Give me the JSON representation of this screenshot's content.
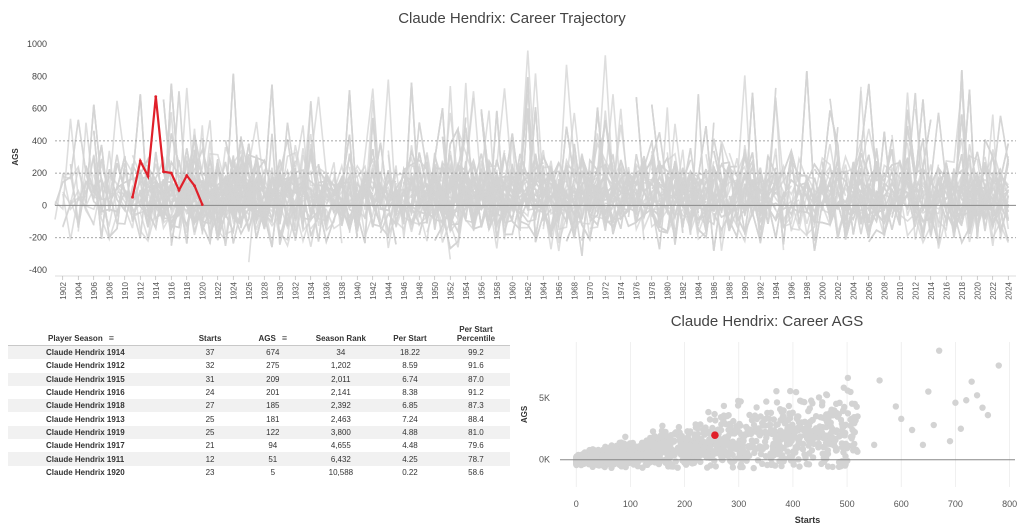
{
  "charts_text": {
    "trajectory_title": "Claude Hendrix: Career Trajectory",
    "ags_title": "Claude Hendrix: Career AGS"
  },
  "chart_data": [
    {
      "type": "line",
      "title": "Claude Hendrix: Career Trajectory",
      "xlabel": "",
      "ylabel": "AGS",
      "ylim": [
        -400,
        1000
      ],
      "y_ticks": [
        -400,
        -200,
        0,
        200,
        400,
        600,
        800,
        1000
      ],
      "x_ticks": [
        "1902",
        "1904",
        "1906",
        "1908",
        "1910",
        "1912",
        "1914",
        "1916",
        "1918",
        "1920",
        "1922",
        "1924",
        "1926",
        "1928",
        "1930",
        "1932",
        "1934",
        "1936",
        "1938",
        "1940",
        "1942",
        "1944",
        "1946",
        "1948",
        "1950",
        "1952",
        "1954",
        "1956",
        "1958",
        "1960",
        "1962",
        "1964",
        "1966",
        "1968",
        "1970",
        "1972",
        "1974",
        "1976",
        "1978",
        "1980",
        "1982",
        "1984",
        "1986",
        "1988",
        "1990",
        "1992",
        "1994",
        "1996",
        "1998",
        "2000",
        "2002",
        "2004",
        "2006",
        "2008",
        "2010",
        "2012",
        "2014",
        "2016",
        "2018",
        "2020",
        "2022",
        "2024"
      ],
      "reference_lines": [
        -200,
        200,
        400
      ],
      "background": "all other player careers (gray)",
      "series": [
        {
          "color": "#e0202a",
          "x": [
            1911,
            1912,
            1913,
            1914,
            1915,
            1916,
            1917,
            1918,
            1919,
            1920
          ],
          "values": [
            51,
            275,
            181,
            674,
            209,
            201,
            94,
            185,
            122,
            5
          ]
        }
      ],
      "colors": {
        "highlight": "#e0202a",
        "background": "#d3d3d3"
      }
    },
    {
      "type": "scatter",
      "title": "Claude Hendrix: Career AGS",
      "xlabel": "Starts",
      "ylabel": "AGS",
      "xlim": [
        -30,
        810
      ],
      "ylim": [
        -2200,
        9500
      ],
      "x_ticks": [
        0,
        100,
        200,
        300,
        400,
        500,
        600,
        700,
        800
      ],
      "y_ticks": [
        "0K",
        "5K"
      ],
      "highlight": {
        "x": 256,
        "y": 1980,
        "color": "#e0202a"
      },
      "background": "all other pitcher careers (gray)"
    }
  ],
  "table": {
    "headers": [
      "Player Season",
      "Starts",
      "AGS",
      "Season Rank",
      "Per Start",
      "Per Start Percentile"
    ],
    "rows": [
      [
        "Claude Hendrix 1914",
        "37",
        "674",
        "34",
        "18.22",
        "99.2"
      ],
      [
        "Claude Hendrix 1912",
        "32",
        "275",
        "1,202",
        "8.59",
        "91.6"
      ],
      [
        "Claude Hendrix 1915",
        "31",
        "209",
        "2,011",
        "6.74",
        "87.0"
      ],
      [
        "Claude Hendrix 1916",
        "24",
        "201",
        "2,141",
        "8.38",
        "91.2"
      ],
      [
        "Claude Hendrix 1918",
        "27",
        "185",
        "2,392",
        "6.85",
        "87.3"
      ],
      [
        "Claude Hendrix 1913",
        "25",
        "181",
        "2,463",
        "7.24",
        "88.4"
      ],
      [
        "Claude Hendrix 1919",
        "25",
        "122",
        "3,800",
        "4.88",
        "81.0"
      ],
      [
        "Claude Hendrix 1917",
        "21",
        "94",
        "4,655",
        "4.48",
        "79.6"
      ],
      [
        "Claude Hendrix 1911",
        "12",
        "51",
        "6,432",
        "4.25",
        "78.7"
      ],
      [
        "Claude Hendrix 1920",
        "23",
        "5",
        "10,588",
        "0.22",
        "58.6"
      ]
    ]
  }
}
